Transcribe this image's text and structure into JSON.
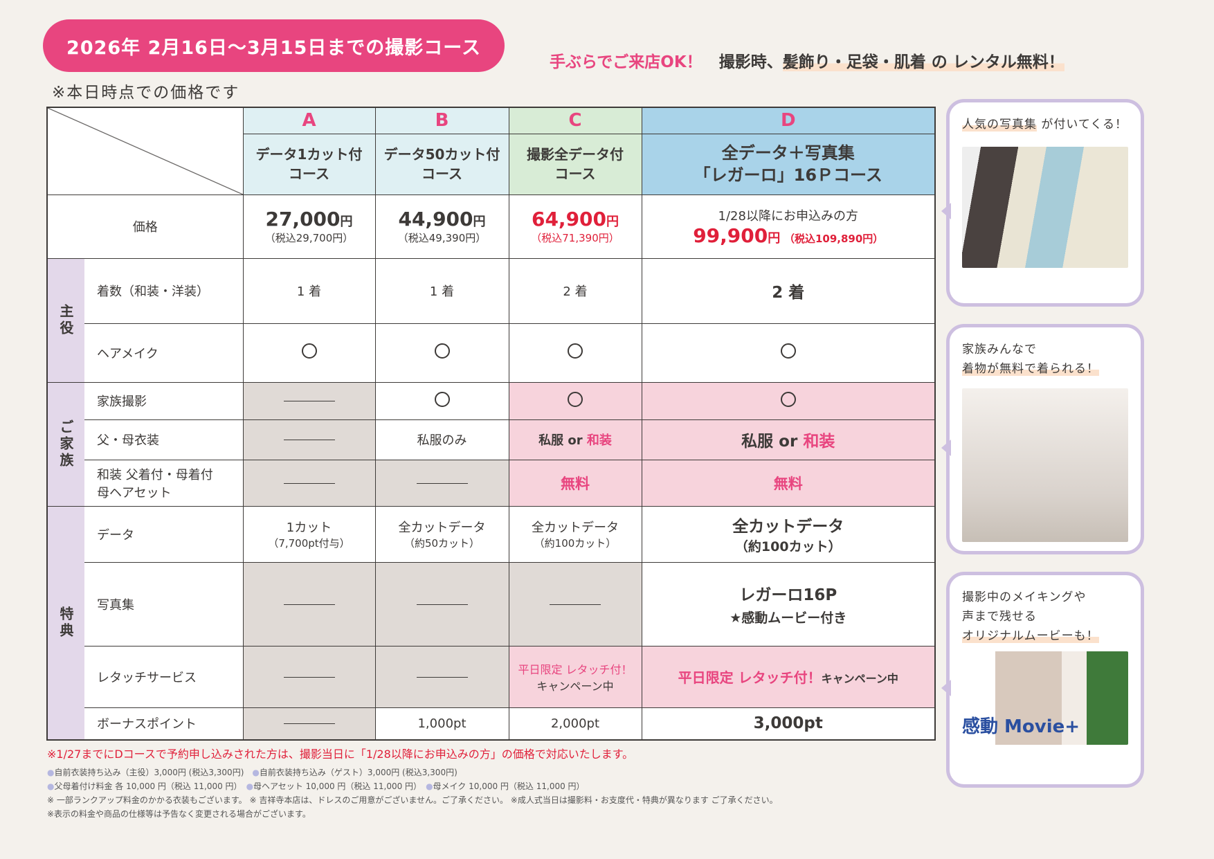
{
  "banner": "2026年 2月16日〜3月15日までの撮影コース",
  "note": "※本日時点での価格です",
  "tagline": {
    "pink": "手ぶらでご来店OK！",
    "text1": "撮影時、",
    "highlight": "髪飾り・足袋・肌着 の レンタル無料！"
  },
  "courses": [
    {
      "letter": "A",
      "name1": "データ1カット付",
      "name2": "コース",
      "price": "27,000",
      "yen": "円",
      "tax": "（税込29,700円）"
    },
    {
      "letter": "B",
      "name1": "データ50カット付",
      "name2": "コース",
      "price": "44,900",
      "yen": "円",
      "tax": "（税込49,390円）"
    },
    {
      "letter": "C",
      "name1": "撮影全データ付",
      "name2": "コース",
      "price": "64,900",
      "yen": "円",
      "tax": "（税込71,390円）"
    },
    {
      "letter": "D",
      "name1": "全データ＋写真集",
      "name2": "「レガーロ」16Ｐコース",
      "pre": "1/28以降にお申込みの方",
      "price": "99,900",
      "yen": "円",
      "tax": "（税込109,890円）"
    }
  ],
  "row_labels": {
    "price": "価格",
    "outfits": "着数（和装・洋装）",
    "hair": "ヘアメイク",
    "family_photo": "家族撮影",
    "parent_outfit": "父・母衣装",
    "kimono": "和装 父着付・母着付",
    "kimono2": "母ヘアセット",
    "data": "データ",
    "album": "写真集",
    "retouch": "レタッチサービス",
    "bonus": "ボーナスポイント"
  },
  "categories": {
    "main": "主役",
    "family": "ご家族",
    "perks": "特典"
  },
  "cells": {
    "outfits": [
      "1 着",
      "1 着",
      "2 着",
      "2 着"
    ],
    "parent_outfit_b": "私服のみ",
    "shifuku_or": "私服 or ",
    "wasou": "和装",
    "free": "無料",
    "data": [
      [
        "1カット",
        "（7,700pt付与）"
      ],
      [
        "全カットデータ",
        "（約50カット）"
      ],
      [
        "全カットデータ",
        "（約100カット）"
      ],
      [
        "全カットデータ",
        "（約100カット）"
      ]
    ],
    "album_d1": "レガーロ16P",
    "album_d2": "★感動ムービー付き",
    "retouch_c1": "平日限定 レタッチ付！",
    "retouch_c2": "キャンペーン中",
    "retouch_d1": "平日限定 レタッチ付！",
    "retouch_d2": "キャンペーン中",
    "bonus": [
      "1,000pt",
      "2,000pt",
      "3,000pt"
    ]
  },
  "side": [
    {
      "hl": "人気の写真集",
      "text": " が付いてくる！"
    },
    {
      "line1": "家族みんなで",
      "hl": "着物が無料で着られる！"
    },
    {
      "line1": "撮影中のメイキングや",
      "line2": "声まで残せる",
      "hl": "オリジナルムービーも！",
      "logo": "感動 Movie+"
    }
  ],
  "footer": {
    "red": "※1/27までにDコースで予約申し込みされた方は、撮影当日に「1/28以降にお申込みの方」の価格で対応いたします。",
    "l1": [
      "自前衣装持ち込み（主役）3,000円 (税込3,300円)",
      "自前衣装持ち込み（ゲスト）3,000円 (税込3,300円)"
    ],
    "l2": [
      "父母着付け料金 各 10,000 円（税込 11,000 円）",
      "母ヘアセット 10,000 円（税込 11,000 円）",
      "母メイク 10,000 円（税込 11,000 円）"
    ],
    "l3": "※ 一部ランクアップ料金のかかる衣装もございます。 ※ 吉祥寺本店は、ドレスのご用意がございません。ご了承ください。 ※成人式当日は撮影料・お支度代・特典が異なります ご了承ください。",
    "l4": "※表示の料金や商品の仕様等は予告なく変更される場合がございます。"
  }
}
